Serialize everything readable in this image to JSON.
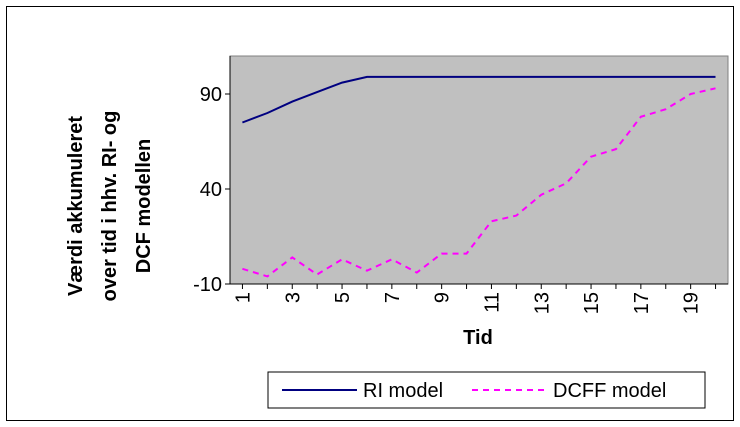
{
  "chart_data": {
    "type": "line",
    "xlabel": "Tid",
    "ylabel_lines": [
      "Værdi akkumuleret",
      "over tid i hhv. RI- og",
      "DCF modellen"
    ],
    "y_ticks": [
      "90",
      "40",
      "-10"
    ],
    "y_tick_values": [
      90,
      40,
      -10
    ],
    "x_ticks": [
      "1",
      "3",
      "5",
      "7",
      "9",
      "11",
      "13",
      "15",
      "17",
      "19"
    ],
    "x": [
      1,
      2,
      3,
      4,
      5,
      6,
      7,
      8,
      9,
      10,
      11,
      12,
      13,
      14,
      15,
      16,
      17,
      18,
      19,
      20
    ],
    "ylim": [
      -10,
      110
    ],
    "grid": false,
    "background": "#c0c0c0",
    "legend_position": "bottom",
    "series": [
      {
        "name": "RI model",
        "color": "#000080",
        "style": "solid",
        "values": [
          75,
          80,
          86,
          91,
          96,
          99,
          99,
          99,
          99,
          99,
          99,
          99,
          99,
          99,
          99,
          99,
          99,
          99,
          99,
          99
        ]
      },
      {
        "name": "DCFF model",
        "color": "#ff00ff",
        "style": "dashed",
        "values": [
          -2,
          -6,
          4,
          -5,
          3,
          -3,
          3,
          -4,
          6,
          6,
          23,
          26,
          37,
          43,
          57,
          61,
          78,
          82,
          90,
          93
        ]
      }
    ]
  }
}
